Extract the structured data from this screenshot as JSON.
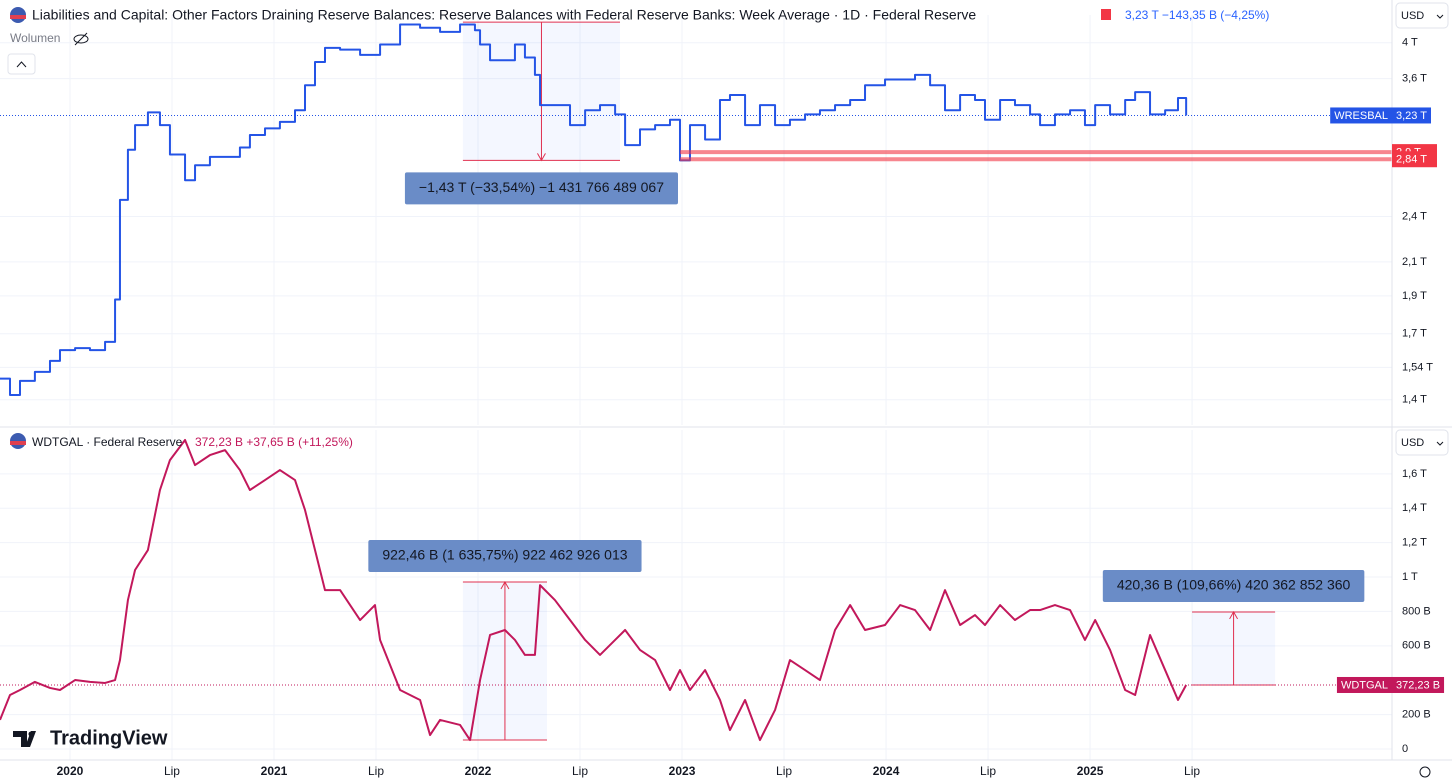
{
  "chart_data": [
    {
      "type": "line",
      "step": true,
      "log_scale": true,
      "title": "Liabilities and Capital: Other Factors Draining Reserve Balances: Reserve Balances with Federal Reserve Banks: Week Average · 1D · Federal Reserve",
      "change": "3,23 T −143,35 B (−4,25%)",
      "volume": "Wolumen",
      "currency": "USD",
      "xlim": [
        2019.657,
        2026.48
      ],
      "ylim": [
        1.3,
        4.34
      ],
      "yticks": [
        {
          "value": 4,
          "label": "4 T"
        },
        {
          "value": 3.6,
          "label": "3,6 T"
        },
        {
          "value": 2.4,
          "label": "2,4 T"
        },
        {
          "value": 2.1,
          "label": "2,1 T"
        },
        {
          "value": 1.9,
          "label": "1,9 T"
        },
        {
          "value": 1.7,
          "label": "1,7 T"
        },
        {
          "value": 1.54,
          "label": "1,54 T"
        },
        {
          "value": 1.4,
          "label": "1,4 T"
        }
      ],
      "series": [
        {
          "name": "WRESBAL",
          "color": "#2454e6",
          "x": [
            2019.657,
            2019.706,
            2019.755,
            2019.828,
            2019.902,
            2019.951,
            2020.025,
            2020.098,
            2020.172,
            2020.221,
            2020.245,
            2020.284,
            2020.319,
            2020.382,
            2020.441,
            2020.49,
            2020.564,
            2020.613,
            2020.686,
            2020.76,
            2020.833,
            2020.882,
            2020.956,
            2021.029,
            2021.103,
            2021.152,
            2021.201,
            2021.25,
            2021.324,
            2021.422,
            2021.52,
            2021.618,
            2021.716,
            2021.814,
            2021.912,
            2021.985,
            2022.01,
            2022.059,
            2022.132,
            2022.181,
            2022.23,
            2022.279,
            2022.304,
            2022.377,
            2022.451,
            2022.525,
            2022.598,
            2022.672,
            2022.721,
            2022.794,
            2022.868,
            2022.941,
            2022.99,
            2023.039,
            2023.113,
            2023.186,
            2023.235,
            2023.309,
            2023.382,
            2023.456,
            2023.529,
            2023.603,
            2023.676,
            2023.75,
            2023.824,
            2023.897,
            2023.995,
            2024.069,
            2024.142,
            2024.216,
            2024.289,
            2024.363,
            2024.436,
            2024.485,
            2024.559,
            2024.632,
            2024.706,
            2024.755,
            2024.828,
            2024.902,
            2024.975,
            2025.025,
            2025.098,
            2025.172,
            2025.221,
            2025.294,
            2025.368,
            2025.431,
            2025.471
          ],
          "values": [
            1.49,
            1.42,
            1.48,
            1.52,
            1.57,
            1.62,
            1.63,
            1.62,
            1.66,
            1.88,
            2.52,
            2.92,
            3.14,
            3.26,
            3.14,
            2.88,
            2.67,
            2.79,
            2.86,
            2.86,
            2.94,
            3.05,
            3.11,
            3.17,
            3.28,
            3.53,
            3.78,
            3.94,
            3.92,
            3.86,
            3.98,
            4.22,
            4.18,
            4.13,
            4.22,
            4.15,
            3.98,
            3.8,
            3.8,
            3.98,
            3.83,
            3.64,
            3.33,
            3.33,
            3.14,
            3.28,
            3.33,
            3.24,
            2.96,
            3.1,
            3.14,
            3.19,
            2.83,
            3.14,
            3.01,
            3.38,
            3.43,
            3.14,
            3.33,
            3.14,
            3.19,
            3.24,
            3.28,
            3.33,
            3.38,
            3.53,
            3.59,
            3.59,
            3.64,
            3.53,
            3.28,
            3.43,
            3.38,
            3.19,
            3.38,
            3.33,
            3.24,
            3.14,
            3.24,
            3.28,
            3.14,
            3.33,
            3.24,
            3.38,
            3.46,
            3.24,
            3.28,
            3.4,
            3.23
          ]
        }
      ],
      "price_line": {
        "name": "WRESBAL",
        "value": 3.23,
        "label": "3,23 T"
      },
      "hlines": [
        {
          "value": 2.9,
          "label": "2,9 T",
          "x": 2022.99
        },
        {
          "value": 2.84,
          "label": "2,84 T",
          "x": 2022.99
        }
      ],
      "annotations": [
        {
          "text": "−1,43 T (−33,54%) −1 431 766 489 067",
          "x": [
            2021.926,
            2022.696
          ],
          "y": [
            4.25,
            2.83
          ]
        }
      ]
    },
    {
      "type": "line",
      "step": false,
      "log_scale": false,
      "title": "WDTGAL · Federal Reserve",
      "change": "372,23 B +37,65 B (+11,25%)",
      "currency": "USD",
      "xlim": [
        2019.657,
        2026.48
      ],
      "ylim": [
        -64,
        1855
      ],
      "xticks": [
        2020,
        {
          "value": 2020.5,
          "label": "Lip"
        },
        2021,
        {
          "value": 2021.5,
          "label": "Lip"
        },
        2022,
        {
          "value": 2022.5,
          "label": "Lip"
        },
        2023,
        {
          "value": 2023.5,
          "label": "Lip"
        },
        2024,
        {
          "value": 2024.5,
          "label": "Lip"
        },
        2025,
        {
          "value": 2025.5,
          "label": "Lip"
        }
      ],
      "yticks": [
        0,
        {
          "value": 200,
          "label": "200 B"
        },
        {
          "value": 600,
          "label": "600 B"
        },
        {
          "value": 800,
          "label": "800 B"
        },
        {
          "value": 1000,
          "label": "1 T"
        },
        {
          "value": 1200,
          "label": "1,2 T"
        },
        {
          "value": 1400,
          "label": "1,4 T"
        },
        {
          "value": 1600,
          "label": "1,6 T"
        }
      ],
      "series": [
        {
          "name": "WDTGAL",
          "color": "#c2185b",
          "x": [
            2019.657,
            2019.706,
            2019.755,
            2019.828,
            2019.902,
            2019.951,
            2020.025,
            2020.098,
            2020.172,
            2020.221,
            2020.245,
            2020.284,
            2020.319,
            2020.382,
            2020.441,
            2020.49,
            2020.564,
            2020.613,
            2020.686,
            2020.76,
            2020.833,
            2020.882,
            2020.956,
            2021.029,
            2021.103,
            2021.152,
            2021.201,
            2021.25,
            2021.324,
            2021.422,
            2021.495,
            2021.52,
            2021.618,
            2021.716,
            2021.765,
            2021.814,
            2021.912,
            2021.961,
            2022.01,
            2022.059,
            2022.132,
            2022.181,
            2022.23,
            2022.279,
            2022.304,
            2022.377,
            2022.451,
            2022.525,
            2022.598,
            2022.672,
            2022.721,
            2022.794,
            2022.868,
            2022.941,
            2022.99,
            2023.039,
            2023.113,
            2023.186,
            2023.235,
            2023.309,
            2023.382,
            2023.456,
            2023.529,
            2023.603,
            2023.676,
            2023.75,
            2023.824,
            2023.897,
            2023.995,
            2024.069,
            2024.142,
            2024.216,
            2024.289,
            2024.363,
            2024.436,
            2024.485,
            2024.559,
            2024.632,
            2024.706,
            2024.755,
            2024.828,
            2024.902,
            2024.975,
            2025.025,
            2025.098,
            2025.172,
            2025.221,
            2025.294,
            2025.368,
            2025.431,
            2025.471
          ],
          "values": [
            169,
            314,
            343,
            390,
            355,
            343,
            401,
            390,
            384,
            401,
            517,
            866,
            1041,
            1157,
            1506,
            1680,
            1797,
            1651,
            1709,
            1738,
            1622,
            1506,
            1564,
            1622,
            1564,
            1390,
            1157,
            924,
            924,
            750,
            837,
            634,
            343,
            285,
            81,
            169,
            140,
            52,
            401,
            663,
            692,
            634,
            547,
            547,
            953,
            866,
            750,
            634,
            547,
            634,
            692,
            576,
            517,
            343,
            459,
            343,
            459,
            285,
            110,
            285,
            52,
            227,
            517,
            459,
            401,
            692,
            837,
            692,
            721,
            837,
            808,
            692,
            924,
            721,
            779,
            721,
            837,
            750,
            808,
            808,
            837,
            808,
            634,
            750,
            576,
            343,
            314,
            663,
            459,
            285,
            372
          ]
        }
      ],
      "price_line": {
        "name": "WDTGAL",
        "value": 372.23,
        "label": "372,23 B"
      },
      "annotations": [
        {
          "text": "922,46 B (1 635,75%) 922 462 926 013",
          "x": [
            2021.926,
            2022.338
          ],
          "y": [
            52,
            971
          ]
        },
        {
          "text": "420,36 B (109,66%) 420 362 852 360",
          "x": [
            2025.5,
            2025.907
          ],
          "y": [
            372,
            797
          ]
        }
      ]
    }
  ],
  "logo": "TradingView"
}
